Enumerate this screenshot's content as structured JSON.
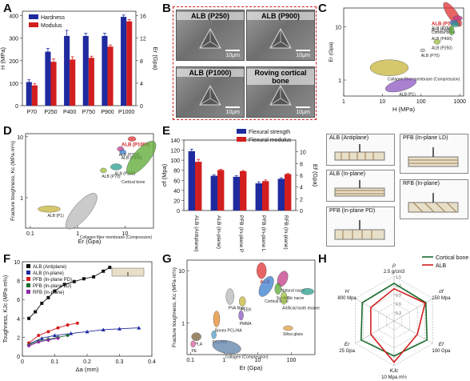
{
  "panels": {
    "A": {
      "label": "A"
    },
    "B": {
      "label": "B"
    },
    "C": {
      "label": "C"
    },
    "D": {
      "label": "D"
    },
    "E": {
      "label": "E"
    },
    "F": {
      "label": "F"
    },
    "G": {
      "label": "G"
    },
    "H": {
      "label": "H"
    }
  },
  "micrographs": [
    {
      "caption": "ALB (P250)",
      "scale": "10μm"
    },
    {
      "caption": "ALB (P900)",
      "scale": "10μm"
    },
    {
      "caption": "ALB (P1000)",
      "scale": "10μm"
    },
    {
      "caption": "Roving cortical bone",
      "scale": "10μm"
    }
  ],
  "schematics": [
    {
      "title": "ALB (Antiplane)"
    },
    {
      "title": "ALB (In-plane)"
    },
    {
      "title": "PFB (In-plane PD)"
    },
    {
      "title": "PFB (In-plane LD)"
    },
    {
      "title": "RFB (In-plane)"
    }
  ],
  "colors": {
    "blue": "#1f2a9e",
    "red": "#d21e1e",
    "green": "#1a6b2e",
    "black": "#111111"
  },
  "chart_data": [
    {
      "id": "A",
      "type": "bar",
      "categories": [
        "P70",
        "P250",
        "P400",
        "P750",
        "P900",
        "P1000"
      ],
      "series": [
        {
          "name": "Hardness",
          "axis": "left",
          "values": [
            105,
            240,
            310,
            310,
            310,
            395
          ],
          "errors": [
            10,
            15,
            25,
            12,
            12,
            8
          ]
        },
        {
          "name": "Modulus",
          "axis": "right",
          "values": [
            3.6,
            7.8,
            8.2,
            8.5,
            10.5,
            15.0
          ],
          "errors": [
            0.3,
            0.5,
            0.5,
            0.3,
            0.3,
            0.3
          ]
        }
      ],
      "ylabel": "H (MPa)",
      "y2label": "Er (Gpa)",
      "ylim": [
        0,
        420
      ],
      "y2lim": [
        0,
        16.8
      ],
      "yticks": [
        0,
        100,
        200,
        300,
        400
      ],
      "y2ticks": [
        0,
        4,
        8,
        12,
        16
      ],
      "legend": "top-left"
    },
    {
      "id": "C",
      "type": "scatter",
      "xlabel": "H (MPa)",
      "ylabel": "Er (Gpa)",
      "xscale": "log",
      "yscale": "log",
      "xticks": [
        "1",
        "10",
        "100",
        "1000"
      ],
      "yticks": [
        "1",
        "10"
      ],
      "regions": [
        {
          "label": "Cortical bone",
          "x": 650,
          "y": 17
        },
        {
          "label": "ALB (P1000)",
          "x": 880,
          "y": 14.5
        },
        {
          "label": "ALB (P750)",
          "x": 700,
          "y": 12
        },
        {
          "label": "ALB (P900)",
          "x": 780,
          "y": 11
        },
        {
          "label": "ALB (P400)",
          "x": 620,
          "y": 8.5
        },
        {
          "label": "ALB (P250)",
          "x": 260,
          "y": 5.2
        },
        {
          "label": "ALB (P70)",
          "x": 110,
          "y": 3.6
        },
        {
          "label": "Collagen fiber membrane (Compression)",
          "x": 15,
          "y": 1.7
        },
        {
          "label": "ALB (P1)",
          "x": 30,
          "y": 0.8
        }
      ]
    },
    {
      "id": "D",
      "type": "scatter",
      "xlabel": "Er (Gpa)",
      "ylabel": "Fracture toughness, Kc (MPa·m½)",
      "xscale": "log",
      "yscale": "log",
      "xticks": [
        "0.1",
        "1",
        "10"
      ],
      "yticks": [
        "1",
        "10"
      ],
      "regions": [
        {
          "label": "ALB (P1000)",
          "x": 14,
          "y": 9.2
        },
        {
          "label": "ALB (P750)",
          "x": 8,
          "y": 6.3
        },
        {
          "label": "ALB (P900)",
          "x": 9,
          "y": 5.6
        },
        {
          "label": "ALB (P250)",
          "x": 6.5,
          "y": 3.2
        },
        {
          "label": "Cortical bone",
          "x": 22,
          "y": 4.5
        },
        {
          "label": "ALB (P70)",
          "x": 3.5,
          "y": 2.8
        },
        {
          "label": "Collagen fiber membrane (Compression)",
          "x": 1.2,
          "y": 0.6
        },
        {
          "label": "ALB (P1)",
          "x": 0.25,
          "y": 0.65
        }
      ]
    },
    {
      "id": "E",
      "type": "bar",
      "categories": [
        "ALB (Antiplane)",
        "ALB (In-plane)",
        "PFB (In-plane PD)",
        "PFB (In-plane LD)",
        "RFB (In-plane)"
      ],
      "series": [
        {
          "name": "Flexural strength",
          "axis": "left",
          "values": [
            118,
            69,
            67,
            54,
            63
          ],
          "errors": [
            4,
            2,
            2,
            3,
            2
          ]
        },
        {
          "name": "Flexural modulus",
          "axis": "right",
          "values": [
            8.3,
            6.9,
            6.7,
            5.0,
            6.2
          ],
          "errors": [
            0.4,
            0.1,
            0.1,
            0.2,
            0.1
          ]
        }
      ],
      "ylabel": "σf (Mpa)",
      "y2label": "Ef (Gpa)",
      "ylim": [
        0,
        140
      ],
      "y2lim": [
        0,
        12
      ],
      "yticks": [
        0,
        20,
        40,
        60,
        80,
        100,
        120,
        140
      ],
      "y2ticks": [
        0,
        2,
        4,
        6,
        8,
        10
      ],
      "legend": "top-right"
    },
    {
      "id": "F",
      "type": "line",
      "xlabel": "Δa (mm)",
      "ylabel": "Toughness, KJc (MPa·m½)",
      "xlim": [
        0,
        0.4
      ],
      "ylim": [
        0,
        10
      ],
      "xticks": [
        0,
        0.1,
        0.2,
        0.3,
        0.4
      ],
      "yticks": [
        0,
        2,
        4,
        6,
        8,
        10
      ],
      "series": [
        {
          "name": "ALB (Antiplane)",
          "color": "#111111",
          "marker": "square",
          "x": [
            0.02,
            0.04,
            0.06,
            0.08,
            0.1,
            0.13,
            0.16,
            0.19,
            0.22,
            0.25,
            0.27
          ],
          "y": [
            4.0,
            4.7,
            5.6,
            6.2,
            6.9,
            7.6,
            7.9,
            8.2,
            8.4,
            9.0,
            9.4
          ]
        },
        {
          "name": "ALB (In-plane)",
          "color": "#1f2a9e",
          "marker": "triangle",
          "x": [
            0.02,
            0.06,
            0.1,
            0.15,
            0.2,
            0.25,
            0.3,
            0.36
          ],
          "y": [
            1.3,
            1.9,
            2.2,
            2.4,
            2.6,
            2.8,
            2.9,
            3.0
          ]
        },
        {
          "name": "PFB (In-plane PD)",
          "color": "#d21e1e",
          "marker": "circle",
          "x": [
            0.02,
            0.05,
            0.08,
            0.11,
            0.14,
            0.17
          ],
          "y": [
            1.4,
            2.2,
            2.6,
            3.0,
            3.3,
            3.5
          ]
        },
        {
          "name": "PFB (In-plane LD)",
          "color": "#1a6b2e",
          "marker": "diamond",
          "x": [
            0.02,
            0.05,
            0.08,
            0.11,
            0.14
          ],
          "y": [
            1.2,
            1.6,
            1.8,
            2.0,
            2.2
          ]
        },
        {
          "name": "RFB (In-plane)",
          "color": "#8e2aa8",
          "marker": "diamond",
          "x": [
            0.02,
            0.05,
            0.08,
            0.11
          ],
          "y": [
            1.1,
            1.5,
            1.7,
            1.9
          ]
        }
      ],
      "legend": "top-left"
    },
    {
      "id": "G",
      "type": "scatter",
      "xlabel": "Er (Gpa)",
      "ylabel": "Fracture toughness, Kc (MPa·m½)",
      "xscale": "log",
      "yscale": "log",
      "xticks": [
        "0.1",
        "1",
        "10",
        "100"
      ],
      "yticks": [
        "1",
        "10"
      ],
      "regions": [
        {
          "label": "ALB",
          "x": 13,
          "y": 10
        },
        {
          "label": "Natural nacre",
          "x": 55,
          "y": 7
        },
        {
          "label": "Cortical bone",
          "x": 18,
          "y": 5
        },
        {
          "label": "SiC",
          "x": 300,
          "y": 4
        },
        {
          "label": "Synthetic nacre",
          "x": 40,
          "y": 4.5
        },
        {
          "label": "Artificial tooth enamel",
          "x": 60,
          "y": 3
        },
        {
          "label": "PVA fiber",
          "x": 1.5,
          "y": 3.2
        },
        {
          "label": "PEEK",
          "x": 3.5,
          "y": 2.6
        },
        {
          "label": "PMMA",
          "x": 3.2,
          "y": 1.4
        },
        {
          "label": "Bones PCL/HA",
          "x": 0.6,
          "y": 1.2
        },
        {
          "label": "PCL/HA",
          "x": 0.5,
          "y": 0.6
        },
        {
          "label": "PLA",
          "x": 0.15,
          "y": 0.55
        },
        {
          "label": "PE",
          "x": 0.12,
          "y": 0.4
        },
        {
          "label": "Collagen (Compression)",
          "x": 1.2,
          "y": 0.35
        },
        {
          "label": "Silica glass",
          "x": 80,
          "y": 0.8
        }
      ]
    },
    {
      "id": "H",
      "type": "radar",
      "axes": [
        {
          "label": "ρ",
          "max": "2.5 g/cm3"
        },
        {
          "label": "σf",
          "max": "150 Mpa"
        },
        {
          "label": "Ef",
          "max": "100 Gpa"
        },
        {
          "label": "KJc",
          "max": "10 Mpa m½"
        },
        {
          "label": "Er",
          "max": "25 Gpa"
        },
        {
          "label": "H",
          "max": "800 Mpa"
        }
      ],
      "series": [
        {
          "name": "Cortical bone",
          "color": "#1a6b2e",
          "values": [
            0.84,
            0.82,
            0.85,
            0.78,
            0.85,
            0.82
          ]
        },
        {
          "name": "ALB",
          "color": "#d21e1e",
          "values": [
            0.72,
            0.8,
            0.6,
            0.92,
            0.6,
            0.6
          ]
        }
      ],
      "ring_labels": [
        "0.3",
        "0.6",
        "0.9",
        "1.2",
        "1.5"
      ],
      "legend": "top-right"
    }
  ]
}
